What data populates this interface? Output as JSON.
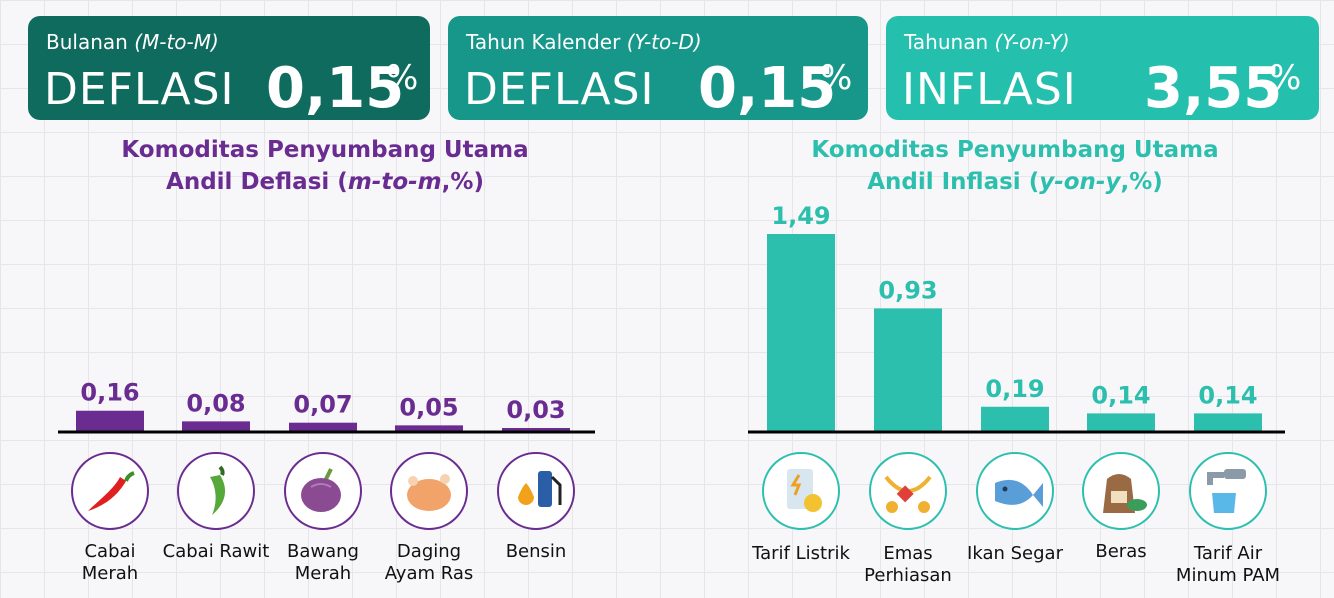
{
  "cards": [
    {
      "label": "Bulanan",
      "label_italic": "(M-to-M)",
      "status": "DEFLASI",
      "value": "0,15",
      "unit": "%"
    },
    {
      "label": "Tahun Kalender",
      "label_italic": "(Y-to-D)",
      "status": "DEFLASI",
      "value": "0,15",
      "unit": "%"
    },
    {
      "label": "Tahunan",
      "label_italic": "(Y-on-Y)",
      "status": "INFLASI",
      "value": "3,55",
      "unit": "%"
    }
  ],
  "chart_data": [
    {
      "type": "bar",
      "title": "Komoditas Penyumbang Utama",
      "subtitle": "Andil Deflasi",
      "subtitle_italic": "m-to-m",
      "subtitle_suffix": ",%",
      "categories": [
        "Cabai Merah",
        "Cabai Rawit",
        "Bawang Merah",
        "Daging Ayam Ras",
        "Bensin"
      ],
      "values": [
        0.16,
        0.08,
        0.07,
        0.05,
        0.03
      ],
      "value_labels": [
        "0,16",
        "0,08",
        "0,07",
        "0,05",
        "0,03"
      ],
      "icons": [
        "red-chili-icon",
        "green-chili-icon",
        "shallot-icon",
        "chicken-icon",
        "fuel-pump-icon"
      ],
      "color": "#6a2c91",
      "ylim": [
        0,
        1.6
      ]
    },
    {
      "type": "bar",
      "title": "Komoditas Penyumbang Utama",
      "subtitle": "Andil Inflasi",
      "subtitle_italic": "y-on-y",
      "subtitle_suffix": ",%",
      "categories": [
        "Tarif Listrik",
        "Emas Perhiasan",
        "Ikan Segar",
        "Beras",
        "Tarif Air Minum PAM"
      ],
      "values": [
        1.49,
        0.93,
        0.19,
        0.14,
        0.14
      ],
      "value_labels": [
        "1,49",
        "0,93",
        "0,19",
        "0,14",
        "0,14"
      ],
      "icons": [
        "electricity-bill-icon",
        "gold-jewelry-icon",
        "fish-icon",
        "rice-sack-icon",
        "water-tap-icon"
      ],
      "color": "#2dbfae",
      "ylim": [
        0,
        1.6
      ]
    }
  ]
}
